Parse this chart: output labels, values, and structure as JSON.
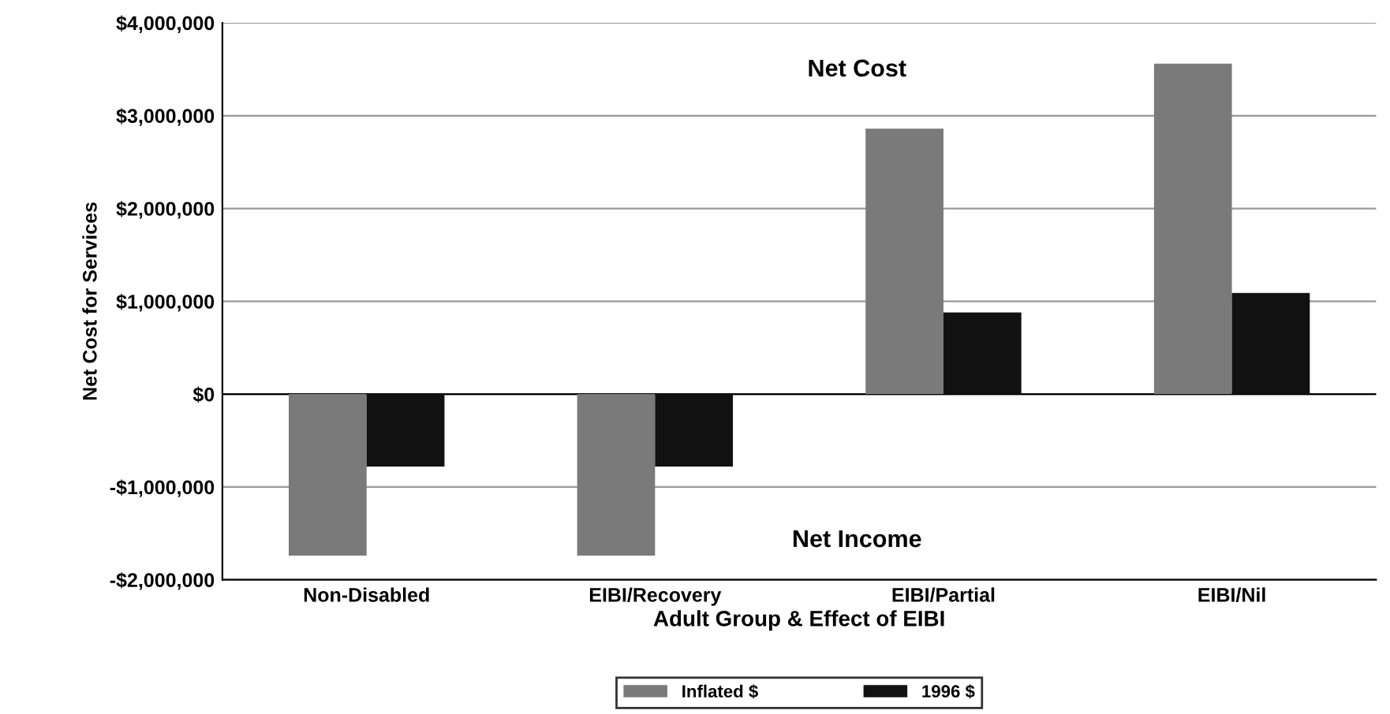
{
  "chart_data": {
    "type": "bar",
    "xlabel": "Adult Group & Effect of EIBI",
    "ylabel": "Net Cost for Services",
    "categories": [
      "Non-Disabled",
      "EIBI/Recovery",
      "EIBI/Partial",
      "EIBI/Nil"
    ],
    "series": [
      {
        "name": "Inflated $",
        "color": "#7a7a7a",
        "values": [
          -1740000,
          -1740000,
          2860000,
          3560000
        ]
      },
      {
        "name": "1996 $",
        "color": "#111111",
        "values": [
          -780000,
          -780000,
          880000,
          1090000
        ]
      }
    ],
    "ylim": [
      -2000000,
      4000000
    ],
    "yticks": [
      {
        "value": -2000000,
        "label": "-$2,000,000"
      },
      {
        "value": -1000000,
        "label": "-$1,000,000"
      },
      {
        "value": 0,
        "label": "$0"
      },
      {
        "value": 1000000,
        "label": "$1,000,000"
      },
      {
        "value": 2000000,
        "label": "$2,000,000"
      },
      {
        "value": 3000000,
        "label": "$3,000,000"
      },
      {
        "value": 4000000,
        "label": "$4,000,000"
      }
    ],
    "grid": "y",
    "legend": "bottom",
    "annotations": [
      "Net Cost",
      "Net Income"
    ]
  }
}
